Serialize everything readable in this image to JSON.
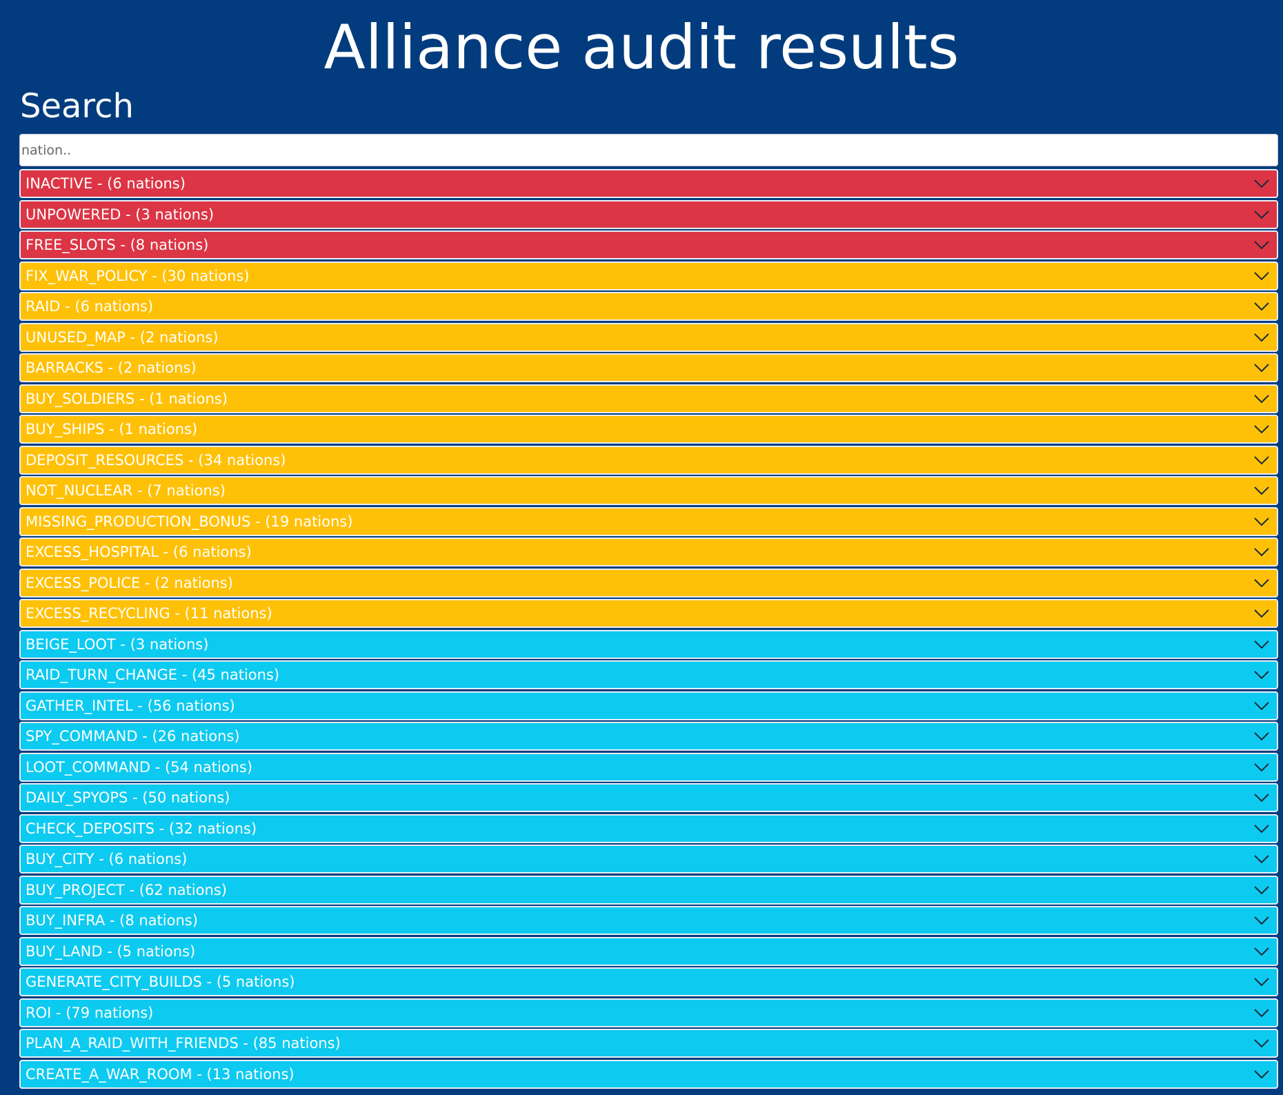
{
  "header": {
    "title": "Alliance audit results"
  },
  "search": {
    "label": "Search",
    "placeholder": "nation.."
  },
  "rows": [
    {
      "label": "INACTIVE - (6 nations)",
      "color": "#dc3545"
    },
    {
      "label": "UNPOWERED - (3 nations)",
      "color": "#dc3545"
    },
    {
      "label": "FREE_SLOTS - (8 nations)",
      "color": "#dc3545"
    },
    {
      "label": "FIX_WAR_POLICY - (30 nations)",
      "color": "#ffc107"
    },
    {
      "label": "RAID - (6 nations)",
      "color": "#ffc107"
    },
    {
      "label": "UNUSED_MAP - (2 nations)",
      "color": "#ffc107"
    },
    {
      "label": "BARRACKS - (2 nations)",
      "color": "#ffc107"
    },
    {
      "label": "BUY_SOLDIERS - (1 nations)",
      "color": "#ffc107"
    },
    {
      "label": "BUY_SHIPS - (1 nations)",
      "color": "#ffc107"
    },
    {
      "label": "DEPOSIT_RESOURCES - (34 nations)",
      "color": "#ffc107"
    },
    {
      "label": "NOT_NUCLEAR - (7 nations)",
      "color": "#ffc107"
    },
    {
      "label": "MISSING_PRODUCTION_BONUS - (19 nations)",
      "color": "#ffc107"
    },
    {
      "label": "EXCESS_HOSPITAL - (6 nations)",
      "color": "#ffc107"
    },
    {
      "label": "EXCESS_POLICE - (2 nations)",
      "color": "#ffc107"
    },
    {
      "label": "EXCESS_RECYCLING - (11 nations)",
      "color": "#ffc107"
    },
    {
      "label": "BEIGE_LOOT - (3 nations)",
      "color": "#0dcaf0"
    },
    {
      "label": "RAID_TURN_CHANGE - (45 nations)",
      "color": "#0dcaf0"
    },
    {
      "label": "GATHER_INTEL - (56 nations)",
      "color": "#0dcaf0"
    },
    {
      "label": "SPY_COMMAND - (26 nations)",
      "color": "#0dcaf0"
    },
    {
      "label": "LOOT_COMMAND - (54 nations)",
      "color": "#0dcaf0"
    },
    {
      "label": "DAILY_SPYOPS - (50 nations)",
      "color": "#0dcaf0"
    },
    {
      "label": "CHECK_DEPOSITS - (32 nations)",
      "color": "#0dcaf0"
    },
    {
      "label": "BUY_CITY - (6 nations)",
      "color": "#0dcaf0"
    },
    {
      "label": "BUY_PROJECT - (62 nations)",
      "color": "#0dcaf0"
    },
    {
      "label": "BUY_INFRA - (8 nations)",
      "color": "#0dcaf0"
    },
    {
      "label": "BUY_LAND - (5 nations)",
      "color": "#0dcaf0"
    },
    {
      "label": "GENERATE_CITY_BUILDS - (5 nations)",
      "color": "#0dcaf0"
    },
    {
      "label": "ROI - (79 nations)",
      "color": "#0dcaf0"
    },
    {
      "label": "PLAN_A_RAID_WITH_FRIENDS - (85 nations)",
      "color": "#0dcaf0"
    },
    {
      "label": "CREATE_A_WAR_ROOM - (13 nations)",
      "color": "#0dcaf0"
    }
  ]
}
